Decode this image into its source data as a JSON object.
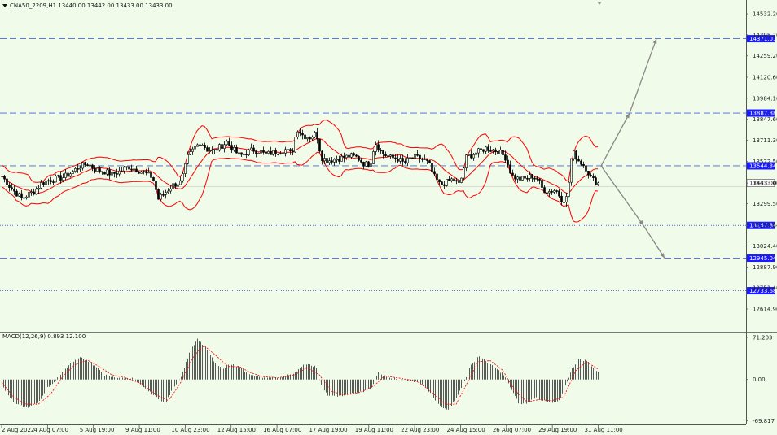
{
  "header": {
    "symbol_line": "CNA50_2209,H1  13440.00 13442.00 13433.00 13433.00",
    "macd_label": "MACD(12,26,9) 0.893 12.100"
  },
  "colors": {
    "background": "#f0fbe9",
    "candle": "#000000",
    "bands": "#ff0000",
    "level_line": "#4466dd",
    "level_label_bg": "#1a1aff",
    "arrow": "#888888",
    "macd_hist": "#333333",
    "macd_signal": "#ff0000"
  },
  "chart_data": [
    {
      "type": "candlestick",
      "name": "price",
      "ylim": [
        12520,
        14580
      ],
      "y_ticks": [
        "14532.20",
        "14395.70",
        "14259.20",
        "14120.60",
        "13984.10",
        "13847.60",
        "13711.30",
        "13572.50",
        "13433.00",
        "13299.50",
        "13157.84",
        "13024.40",
        "12887.90",
        "12751.40",
        "12614.90"
      ],
      "x_ticks": [
        "2 Aug 2022",
        "4 Aug 07:00",
        "5 Aug 19:00",
        "9 Aug 11:00",
        "10 Aug 23:00",
        "12 Aug 15:00",
        "16 Aug 07:00",
        "17 Aug 19:00",
        "19 Aug 11:00",
        "22 Aug 23:00",
        "24 Aug 15:00",
        "26 Aug 07:00",
        "29 Aug 19:00",
        "31 Aug 11:00"
      ],
      "current_price": "13433.00",
      "close_path": [
        [
          0,
          13480
        ],
        [
          8,
          13420
        ],
        [
          15,
          13380
        ],
        [
          25,
          13330
        ],
        [
          32,
          13360
        ],
        [
          40,
          13380
        ],
        [
          48,
          13430
        ],
        [
          56,
          13450
        ],
        [
          65,
          13460
        ],
        [
          75,
          13470
        ],
        [
          85,
          13500
        ],
        [
          95,
          13540
        ],
        [
          105,
          13560
        ],
        [
          115,
          13520
        ],
        [
          125,
          13510
        ],
        [
          135,
          13490
        ],
        [
          145,
          13510
        ],
        [
          155,
          13540
        ],
        [
          165,
          13520
        ],
        [
          175,
          13500
        ],
        [
          185,
          13470
        ],
        [
          192,
          13330
        ],
        [
          200,
          13370
        ],
        [
          210,
          13420
        ],
        [
          220,
          13440
        ],
        [
          228,
          13600
        ],
        [
          236,
          13660
        ],
        [
          244,
          13700
        ],
        [
          252,
          13650
        ],
        [
          260,
          13640
        ],
        [
          268,
          13670
        ],
        [
          276,
          13700
        ],
        [
          284,
          13650
        ],
        [
          292,
          13610
        ],
        [
          300,
          13630
        ],
        [
          308,
          13650
        ],
        [
          316,
          13640
        ],
        [
          324,
          13620
        ],
        [
          332,
          13630
        ],
        [
          340,
          13640
        ],
        [
          348,
          13650
        ],
        [
          356,
          13620
        ],
        [
          362,
          13790
        ],
        [
          370,
          13740
        ],
        [
          378,
          13730
        ],
        [
          386,
          13760
        ],
        [
          392,
          13600
        ],
        [
          400,
          13580
        ],
        [
          410,
          13590
        ],
        [
          420,
          13600
        ],
        [
          428,
          13610
        ],
        [
          436,
          13600
        ],
        [
          444,
          13560
        ],
        [
          452,
          13550
        ],
        [
          458,
          13700
        ],
        [
          466,
          13630
        ],
        [
          476,
          13600
        ],
        [
          486,
          13590
        ],
        [
          494,
          13560
        ],
        [
          500,
          13590
        ],
        [
          508,
          13600
        ],
        [
          516,
          13590
        ],
        [
          524,
          13560
        ],
        [
          530,
          13480
        ],
        [
          538,
          13420
        ],
        [
          546,
          13440
        ],
        [
          554,
          13460
        ],
        [
          562,
          13420
        ],
        [
          570,
          13600
        ],
        [
          578,
          13620
        ],
        [
          586,
          13640
        ],
        [
          594,
          13660
        ],
        [
          602,
          13650
        ],
        [
          610,
          13640
        ],
        [
          618,
          13600
        ],
        [
          626,
          13480
        ],
        [
          634,
          13460
        ],
        [
          642,
          13460
        ],
        [
          650,
          13480
        ],
        [
          658,
          13460
        ],
        [
          664,
          13390
        ],
        [
          672,
          13380
        ],
        [
          680,
          13390
        ],
        [
          688,
          13320
        ],
        [
          694,
          13340
        ],
        [
          700,
          13640
        ],
        [
          708,
          13580
        ],
        [
          716,
          13540
        ],
        [
          724,
          13460
        ],
        [
          732,
          13433
        ]
      ],
      "levels": [
        {
          "price": 14371.01,
          "label": "14371.01",
          "style": "dashed"
        },
        {
          "price": 13887.88,
          "label": "13887.88",
          "style": "dashed"
        },
        {
          "price": 13544.84,
          "label": "13544.84",
          "style": "dashed"
        },
        {
          "price": 13157.84,
          "label": "13157.84",
          "style": "dotted"
        },
        {
          "price": 12945.04,
          "label": "12945.04",
          "style": "dashed"
        },
        {
          "price": 12733.68,
          "label": "12733.68",
          "style": "dotted"
        }
      ],
      "projection_arrows": [
        {
          "from": [
            738,
            13544.84
          ],
          "via": [
            773,
            13887.88
          ],
          "to": [
            806,
            14371.01
          ]
        },
        {
          "from": [
            738,
            13544.84
          ],
          "via": [
            790,
            13157.84
          ],
          "to": [
            816,
            12945.04
          ]
        }
      ]
    },
    {
      "type": "bar",
      "name": "macd",
      "ylim": [
        -72,
        74
      ],
      "y_ticks": [
        "71.203",
        "0.00",
        "-69.817"
      ],
      "histogram_path": [
        [
          0,
          -10
        ],
        [
          15,
          -40
        ],
        [
          30,
          -48
        ],
        [
          45,
          -40
        ],
        [
          55,
          -15
        ],
        [
          65,
          -3
        ],
        [
          75,
          15
        ],
        [
          85,
          28
        ],
        [
          95,
          38
        ],
        [
          105,
          32
        ],
        [
          115,
          22
        ],
        [
          125,
          8
        ],
        [
          135,
          4
        ],
        [
          145,
          3
        ],
        [
          160,
          2
        ],
        [
          175,
          -15
        ],
        [
          190,
          -30
        ],
        [
          200,
          -42
        ],
        [
          210,
          -15
        ],
        [
          220,
          5
        ],
        [
          230,
          45
        ],
        [
          240,
          68
        ],
        [
          250,
          54
        ],
        [
          260,
          32
        ],
        [
          270,
          18
        ],
        [
          280,
          26
        ],
        [
          290,
          22
        ],
        [
          300,
          12
        ],
        [
          310,
          6
        ],
        [
          320,
          4
        ],
        [
          330,
          2
        ],
        [
          345,
          5
        ],
        [
          360,
          12
        ],
        [
          372,
          26
        ],
        [
          385,
          22
        ],
        [
          392,
          -8
        ],
        [
          400,
          -28
        ],
        [
          415,
          -28
        ],
        [
          430,
          -24
        ],
        [
          445,
          -20
        ],
        [
          455,
          -12
        ],
        [
          462,
          12
        ],
        [
          470,
          6
        ],
        [
          480,
          2
        ],
        [
          495,
          0
        ],
        [
          510,
          -5
        ],
        [
          520,
          -12
        ],
        [
          530,
          -32
        ],
        [
          540,
          -48
        ],
        [
          548,
          -50
        ],
        [
          555,
          -38
        ],
        [
          565,
          -12
        ],
        [
          575,
          22
        ],
        [
          585,
          40
        ],
        [
          595,
          30
        ],
        [
          605,
          20
        ],
        [
          615,
          10
        ],
        [
          625,
          -15
        ],
        [
          635,
          -42
        ],
        [
          645,
          -40
        ],
        [
          655,
          -30
        ],
        [
          665,
          -36
        ],
        [
          675,
          -40
        ],
        [
          685,
          -36
        ],
        [
          692,
          -10
        ],
        [
          700,
          18
        ],
        [
          708,
          34
        ],
        [
          718,
          32
        ],
        [
          728,
          18
        ],
        [
          732,
          12
        ]
      ],
      "signal_path": [
        [
          0,
          -5
        ],
        [
          15,
          -30
        ],
        [
          30,
          -42
        ],
        [
          45,
          -42
        ],
        [
          60,
          -25
        ],
        [
          75,
          5
        ],
        [
          90,
          25
        ],
        [
          105,
          33
        ],
        [
          120,
          22
        ],
        [
          135,
          8
        ],
        [
          150,
          4
        ],
        [
          170,
          -6
        ],
        [
          190,
          -26
        ],
        [
          205,
          -36
        ],
        [
          220,
          -5
        ],
        [
          235,
          38
        ],
        [
          248,
          58
        ],
        [
          262,
          42
        ],
        [
          278,
          22
        ],
        [
          292,
          22
        ],
        [
          305,
          12
        ],
        [
          320,
          5
        ],
        [
          340,
          3
        ],
        [
          360,
          8
        ],
        [
          375,
          20
        ],
        [
          390,
          8
        ],
        [
          405,
          -20
        ],
        [
          420,
          -26
        ],
        [
          440,
          -22
        ],
        [
          458,
          -10
        ],
        [
          470,
          6
        ],
        [
          490,
          2
        ],
        [
          510,
          -3
        ],
        [
          525,
          -18
        ],
        [
          545,
          -42
        ],
        [
          558,
          -42
        ],
        [
          570,
          -10
        ],
        [
          585,
          30
        ],
        [
          600,
          32
        ],
        [
          615,
          16
        ],
        [
          630,
          -18
        ],
        [
          645,
          -38
        ],
        [
          660,
          -34
        ],
        [
          675,
          -36
        ],
        [
          690,
          -30
        ],
        [
          705,
          15
        ],
        [
          718,
          30
        ],
        [
          732,
          18
        ]
      ]
    }
  ]
}
